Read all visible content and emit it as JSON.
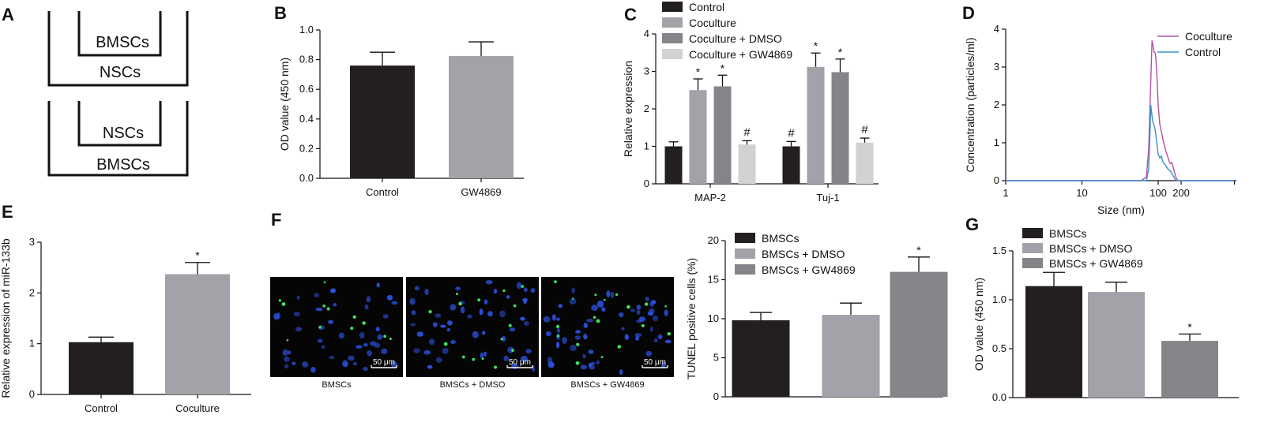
{
  "panel_labels": [
    "A",
    "B",
    "C",
    "D",
    "E",
    "F",
    "G"
  ],
  "panel_a": {
    "top_inner": "BMSCs",
    "top_outer": "NSCs",
    "bottom_inner": "NSCs",
    "bottom_outer": "BMSCs"
  },
  "panel_f_images": {
    "captions": [
      "BMSCs",
      "BMSCs + DMSO",
      "BMSCs + GW4869"
    ],
    "scale_bar": "50 μm"
  },
  "colors": {
    "black": "#231f20",
    "gray_light": "#a1a3a8",
    "gray_mid": "#838588",
    "gray_pale": "#d0d2d3",
    "coculture_line": "#b54fa6",
    "control_line": "#3d8fd0",
    "micro_bg": "#050505",
    "nuclei": "#2a4fd8",
    "tunel": "#3fe060"
  },
  "chart_data": [
    {
      "id": "B",
      "type": "bar",
      "categories": [
        "Control",
        "GW4869"
      ],
      "values": [
        0.76,
        0.825
      ],
      "errors": [
        0.09,
        0.095
      ],
      "ylabel": "OD value (450 nm)",
      "ylim": [
        0,
        1.0
      ],
      "yticks": [
        "0.0",
        "0.2",
        "0.4",
        "0.6",
        "0.8",
        "1.0"
      ]
    },
    {
      "id": "C",
      "type": "bar",
      "categories": [
        "MAP-2",
        "Tuj-1"
      ],
      "series": [
        {
          "name": "Control",
          "values": [
            1.0,
            1.0
          ],
          "errors": [
            0.12,
            0.13
          ],
          "marks": [
            "",
            "#"
          ]
        },
        {
          "name": "Coculture",
          "values": [
            2.5,
            3.12
          ],
          "errors": [
            0.3,
            0.37
          ],
          "marks": [
            "*",
            "*"
          ]
        },
        {
          "name": "Coculture + DMSO",
          "values": [
            2.6,
            2.98
          ],
          "errors": [
            0.3,
            0.35
          ],
          "marks": [
            "*",
            "*"
          ]
        },
        {
          "name": "Coculture + GW4869",
          "values": [
            1.05,
            1.1
          ],
          "errors": [
            0.1,
            0.12
          ],
          "marks": [
            "#",
            "#"
          ]
        }
      ],
      "ylabel": "Relative expression",
      "ylim": [
        0,
        4
      ],
      "yticks": [
        "0",
        "1",
        "2",
        "3",
        "4"
      ],
      "legend": "top"
    },
    {
      "id": "D",
      "type": "line",
      "xscale": "log",
      "xticks": [
        "1",
        "10",
        "100",
        "200"
      ],
      "xlabel": "Size (nm)",
      "ylabel": "Concentration (particles/ml)",
      "ylim": [
        0,
        4
      ],
      "yticks": [
        "0",
        "1",
        "2",
        "3",
        "4"
      ],
      "legend": "top-right",
      "series": [
        {
          "name": "Coculture",
          "x": [
            1,
            10,
            60,
            70,
            75,
            80,
            83,
            86,
            88,
            90,
            92,
            95,
            100,
            105,
            110,
            115,
            120,
            125,
            130,
            135,
            140,
            145,
            150,
            155,
            160,
            165,
            170,
            175,
            180,
            190,
            200,
            1000
          ],
          "y": [
            0,
            0,
            0,
            0.1,
            0.8,
            2.6,
            3.7,
            3.55,
            3.4,
            3.4,
            3.35,
            3.0,
            2.0,
            1.5,
            1.3,
            1.1,
            0.95,
            0.8,
            0.7,
            0.6,
            0.5,
            0.45,
            0.48,
            0.4,
            0.3,
            0.2,
            0.1,
            0.05,
            0,
            0,
            0,
            0
          ]
        },
        {
          "name": "Control",
          "x": [
            1,
            10,
            60,
            70,
            75,
            78,
            80,
            83,
            85,
            87,
            90,
            92,
            95,
            100,
            105,
            110,
            115,
            120,
            125,
            130,
            135,
            140,
            145,
            150,
            155,
            160,
            165,
            175,
            1000
          ],
          "y": [
            0,
            0,
            0,
            0,
            0.3,
            1.2,
            2.0,
            1.7,
            1.55,
            1.5,
            1.4,
            1.3,
            1.05,
            0.7,
            0.6,
            0.65,
            0.5,
            0.45,
            0.4,
            0.35,
            0.3,
            0.28,
            0.25,
            0.2,
            0.15,
            0.1,
            0.05,
            0,
            0
          ]
        }
      ]
    },
    {
      "id": "E",
      "type": "bar",
      "categories": [
        "Control",
        "Coculture"
      ],
      "values": [
        1.03,
        2.37
      ],
      "errors": [
        0.1,
        0.23
      ],
      "marks": [
        "",
        "*"
      ],
      "ylabel": "Relative expression of miR-133b",
      "ylim": [
        0,
        3
      ],
      "yticks": [
        "0",
        "1",
        "2",
        "3"
      ]
    },
    {
      "id": "F",
      "type": "bar",
      "categories": [
        "BMSCs",
        "BMSCs + DMSO",
        "BMSCs + GW4869"
      ],
      "values": [
        9.8,
        10.5,
        16.0
      ],
      "errors": [
        1.0,
        1.5,
        1.9
      ],
      "marks": [
        "",
        "",
        "*"
      ],
      "ylabel": "TUNEL positive cells (%)",
      "ylim": [
        0,
        20
      ],
      "yticks": [
        "0",
        "5",
        "10",
        "15",
        "20"
      ],
      "legend": "top"
    },
    {
      "id": "G",
      "type": "bar",
      "categories": [
        "BMSCs",
        "BMSCs + DMSO",
        "BMSCs + GW4869"
      ],
      "values": [
        1.14,
        1.08,
        0.58
      ],
      "errors": [
        0.14,
        0.1,
        0.07
      ],
      "marks": [
        "",
        "",
        "*"
      ],
      "ylabel": "OD value (450 nm)",
      "ylim": [
        0,
        1.5
      ],
      "yticks": [
        "0.0",
        "0.5",
        "1.0",
        "1.5"
      ],
      "legend": "top"
    }
  ]
}
